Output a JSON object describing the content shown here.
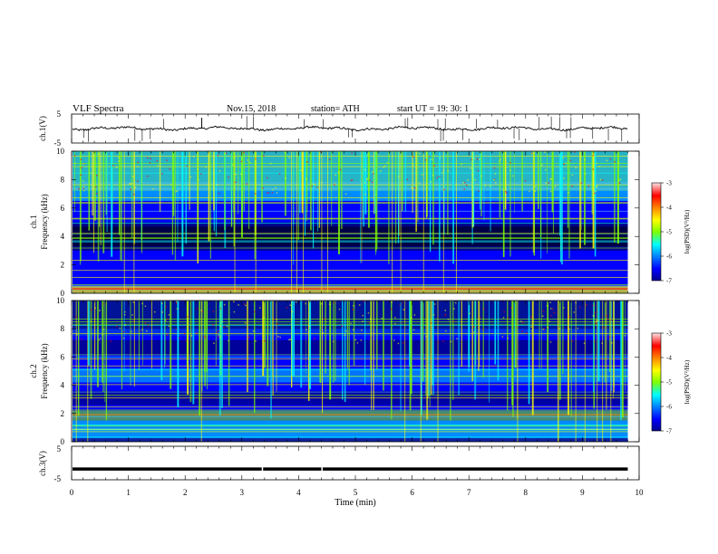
{
  "header": {
    "title": "VLF  Spectra",
    "date": "Nov.15, 2018",
    "station": "station= ATH",
    "start": "start  UT  =   19: 30: 1"
  },
  "chart_data": [
    {
      "type": "line",
      "name": "ch1-waveform",
      "ylabel": "ch.1(V)",
      "ylim": [
        -5,
        5
      ],
      "yticks": [
        "5",
        "-5"
      ],
      "xlim": [
        0,
        10
      ],
      "data_end_min": 9.8,
      "baseline_v": 0.0
    },
    {
      "type": "heatmap",
      "name": "ch1-spectrogram",
      "ylabel": "ch.1\nFrequency  (kHz)",
      "ylim": [
        0,
        10
      ],
      "yticks": [
        "0",
        "2",
        "4",
        "6",
        "8",
        "10"
      ],
      "xlim": [
        0,
        10
      ],
      "data_end_min": 9.8,
      "colorbar": {
        "label": "log(PSD)(V²/Hz)",
        "range": [
          -7,
          -3
        ],
        "ticks": [
          "-3",
          "-4",
          "-5",
          "-6",
          "-7"
        ]
      }
    },
    {
      "type": "heatmap",
      "name": "ch2-spectrogram",
      "ylabel": "ch.2\nFrequency  (kHz)",
      "ylim": [
        0,
        10
      ],
      "yticks": [
        "0",
        "2",
        "4",
        "6",
        "8",
        "10"
      ],
      "xlim": [
        0,
        10
      ],
      "data_end_min": 9.8,
      "colorbar": {
        "label": "log(PSD)(V²/Hz)",
        "range": [
          -7,
          -3
        ],
        "ticks": [
          "-3",
          "-4",
          "-5",
          "-6",
          "-7"
        ]
      }
    },
    {
      "type": "line",
      "name": "ch3-waveform",
      "ylabel": "ch.3(V)",
      "ylim": [
        -5,
        5
      ],
      "yticks": [
        "5",
        "-5"
      ],
      "xlim": [
        0,
        10
      ],
      "data_end_min": 9.8,
      "baseline_v": -1.8
    }
  ],
  "xaxis": {
    "label": "Time  (min)",
    "ticks": [
      "0",
      "1",
      "2",
      "3",
      "4",
      "5",
      "6",
      "7",
      "8",
      "9",
      "10"
    ]
  },
  "colors": {
    "jet": [
      "#00008f",
      "#0000ff",
      "#00ffff",
      "#80ff00",
      "#ffff00",
      "#ff8000",
      "#ff0000",
      "#ffe4e4"
    ]
  }
}
